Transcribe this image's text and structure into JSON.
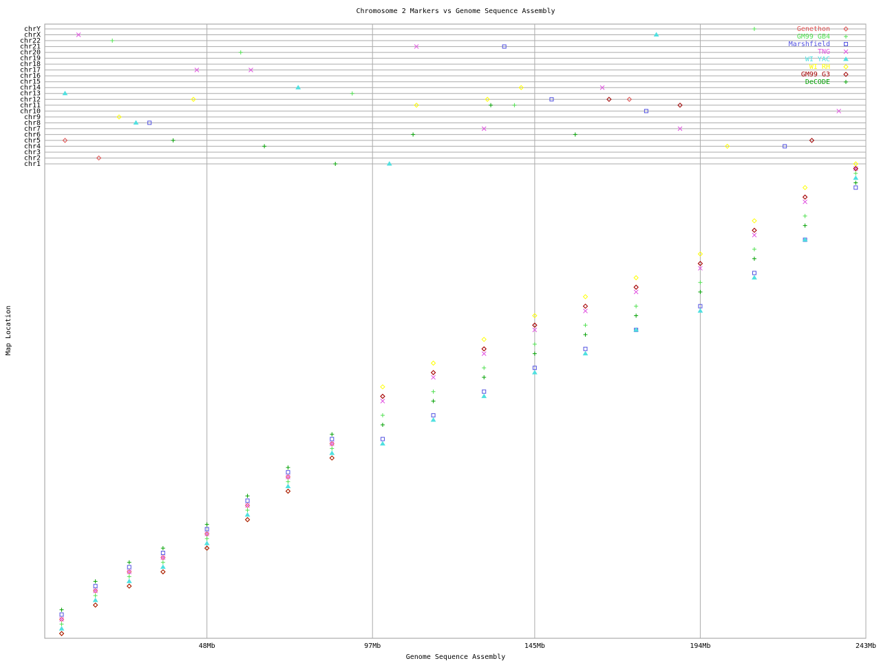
{
  "chart_data": {
    "type": "scatter",
    "title": "Chromosome 2 Markers vs Genome Sequence Assembly",
    "xlabel": "Genome Sequence Assembly",
    "ylabel": "Map Location",
    "xlim": [
      0,
      243
    ],
    "xticks": [
      {
        "value": 48,
        "label": "48Mb"
      },
      {
        "value": 97,
        "label": "97Mb"
      },
      {
        "value": 145,
        "label": "145Mb"
      },
      {
        "value": 194,
        "label": "194Mb"
      },
      {
        "value": 243,
        "label": "243Mb"
      }
    ],
    "ylim": [
      0,
      1
    ],
    "grid": true,
    "legend": "upper right",
    "chr_labels": [
      "chrY",
      "chrX",
      "chr22",
      "chr21",
      "chr20",
      "chr19",
      "chr18",
      "chr17",
      "chr16",
      "chr15",
      "chr14",
      "chr13",
      "chr12",
      "chr11",
      "chr10",
      "chr9",
      "chr8",
      "chr7",
      "chr6",
      "chr5",
      "chr4",
      "chr3",
      "chr2",
      "chr1"
    ],
    "x": [
      5,
      15,
      25,
      35,
      48,
      60,
      72,
      85,
      100,
      115,
      130,
      145,
      160,
      175,
      194,
      210,
      225,
      240
    ],
    "series": [
      {
        "name": "Genethon",
        "color": "#e05050",
        "marker": "diamond",
        "values": [
          0.04,
          0.1,
          0.14,
          0.17,
          0.22,
          0.28,
          0.34,
          0.41,
          0.51,
          0.56,
          0.61,
          0.66,
          0.7,
          0.74,
          0.79,
          0.86,
          0.93,
          0.99
        ],
        "hits": {
          "x": [
            6,
            16,
            173
          ],
          "chr": [
            "chr5",
            "chr2",
            "chr12"
          ]
        }
      },
      {
        "name": "GM99 GB4",
        "color": "#50e050",
        "marker": "plus",
        "values": [
          0.03,
          0.09,
          0.13,
          0.16,
          0.21,
          0.27,
          0.33,
          0.4,
          0.47,
          0.52,
          0.57,
          0.62,
          0.66,
          0.7,
          0.75,
          0.82,
          0.89,
          0.98
        ],
        "hits": {
          "x": [
            20,
            58,
            91,
            139,
            210
          ],
          "chr": [
            "chr22",
            "chr20",
            "chr13",
            "chr11",
            "chrY"
          ]
        }
      },
      {
        "name": "Marshfield",
        "color": "#5050e0",
        "marker": "square",
        "values": [
          0.05,
          0.11,
          0.15,
          0.18,
          0.23,
          0.29,
          0.35,
          0.42,
          0.42,
          0.47,
          0.52,
          0.57,
          0.61,
          0.65,
          0.7,
          0.77,
          0.84,
          0.95
        ],
        "hits": {
          "x": [
            31,
            136,
            150,
            178,
            219
          ],
          "chr": [
            "chr8",
            "chr21",
            "chr12",
            "chr10",
            "chr4"
          ]
        }
      },
      {
        "name": "TNG",
        "color": "#e050e0",
        "marker": "x",
        "values": [
          0.04,
          0.1,
          0.14,
          0.17,
          0.22,
          0.28,
          0.34,
          0.41,
          0.5,
          0.55,
          0.6,
          0.65,
          0.69,
          0.73,
          0.78,
          0.85,
          0.92,
          0.99
        ],
        "hits": {
          "x": [
            10,
            45,
            61,
            110,
            130,
            165,
            188,
            235
          ],
          "chrY": null,
          "chr": [
            "chrX",
            "chr17",
            "chr17",
            "chr21",
            "chr7",
            "chr14",
            "chr7",
            "chr10"
          ]
        }
      },
      {
        "name": "WI YAC",
        "color": "#50e0e0",
        "marker": "triangle",
        "values": [
          0.02,
          0.08,
          0.12,
          0.15,
          0.2,
          0.26,
          0.32,
          0.39,
          0.41,
          0.46,
          0.51,
          0.56,
          0.6,
          0.65,
          0.69,
          0.76,
          0.84,
          0.97
        ],
        "hits": {
          "x": [
            6,
            27,
            75,
            102,
            181
          ],
          "chr": [
            "chr13",
            "chr8",
            "chr14",
            "chr1",
            "chrX"
          ]
        }
      },
      {
        "name": "WI RH",
        "color": "#ffff00",
        "marker": "diamond",
        "values": [
          0.01,
          0.07,
          0.11,
          0.14,
          0.19,
          0.25,
          0.31,
          0.38,
          0.53,
          0.58,
          0.63,
          0.68,
          0.72,
          0.76,
          0.81,
          0.88,
          0.95,
          1.0
        ],
        "hits": {
          "x": [
            22,
            44,
            110,
            131,
            141,
            202
          ],
          "chr": [
            "chr9",
            "chr12",
            "chr11",
            "chr12",
            "chr14",
            "chr4"
          ]
        }
      },
      {
        "name": "GM99 G3",
        "color": "#a00000",
        "marker": "diamond",
        "values": [
          0.01,
          0.07,
          0.11,
          0.14,
          0.19,
          0.25,
          0.31,
          0.38,
          0.51,
          0.56,
          0.61,
          0.66,
          0.7,
          0.74,
          0.79,
          0.86,
          0.93,
          0.99
        ],
        "hits": {
          "x": [
            167,
            188,
            227
          ],
          "chr": [
            "chr12",
            "chr11",
            "chr5"
          ]
        }
      },
      {
        "name": "DeCODE",
        "color": "#00a000",
        "marker": "plus",
        "values": [
          0.06,
          0.12,
          0.16,
          0.19,
          0.24,
          0.3,
          0.36,
          0.43,
          0.45,
          0.5,
          0.55,
          0.6,
          0.64,
          0.68,
          0.73,
          0.8,
          0.87,
          0.96
        ],
        "hits": {
          "x": [
            38,
            65,
            86,
            109,
            132,
            157
          ],
          "chr": [
            "chr5",
            "chr4",
            "chr1",
            "chr6",
            "chr11",
            "chr6"
          ]
        }
      }
    ]
  }
}
